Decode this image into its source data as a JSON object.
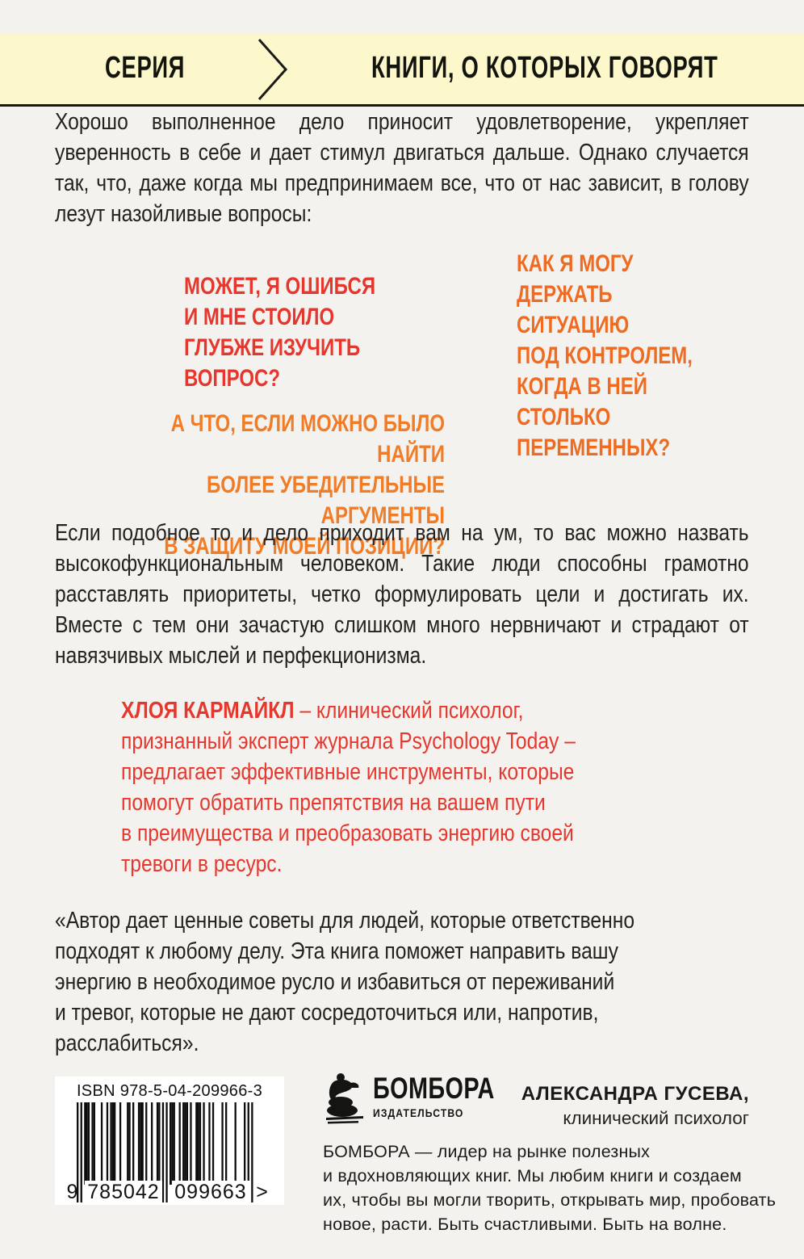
{
  "banner": {
    "series_label": "СЕРИЯ",
    "series_title": "КНИГИ, О КОТОРЫХ ГОВОРЯТ",
    "background": "#fcf8cb"
  },
  "intro_paragraph": "Хорошо выполненное дело приносит удовлетворение, укрепляет уверенность в себе и дает стимул двигаться дальше. Однако случается так, что, даже когда мы предпринимаем все, что от нас зависит, в голову лезут назойливые вопросы:",
  "questions": {
    "red_question": "МОЖЕТ, Я ОШИБСЯ\nИ МНЕ СТОИЛО\nГЛУБЖЕ ИЗУЧИТЬ\nВОПРОС?",
    "orange_question_right": "КАК Я МОГУ\nДЕРЖАТЬ\nСИТУАЦИЮ\nПОД КОНТРОЛЕМ,\nКОГДА В НЕЙ\nСТОЛЬКО\nПЕРЕМЕННЫХ?",
    "orange_question_left": "А ЧТО, ЕСЛИ МОЖНО БЫЛО НАЙТИ\nБОЛЕЕ УБЕДИТЕЛЬНЫЕ АРГУМЕНТЫ\nВ ЗАЩИТУ МОЕЙ ПОЗИЦИИ?",
    "red_color": "#e6372e",
    "orange_color": "#ef6b22"
  },
  "body_paragraph": "Если подобное то и дело приходит вам на ум, то вас можно назвать высокофункциональным человеком. Такие люди способны грамотно расставлять приоритеты, четко формулировать цели и достигать их. Вместе с тем они зачастую слишком много нервничают и страдают от навязчивых мыслей и перфекционизма.",
  "author_block": {
    "name": "ХЛОЯ КАРМАЙКЛ",
    "description": " – клинический психолог,\nпризнанный эксперт журнала Psychology Today –\nпредлагает эффективные инструменты, которые\nпомогут обратить препятствия на вашем пути\nв преимущества и преобразовать энергию своей\nтревоги в ресурс.",
    "color": "#e6372e"
  },
  "review": {
    "quote": "«Автор дает ценные советы для людей, которые ответственно\nподходят к любому делу. Эта книга поможет направить вашу\nэнергию в необходимое русло и избавиться от переживаний\nи тревог, которые не дают сосредоточиться или, напротив,\nрасслабиться».",
    "reviewer_name": "АЛЕКСАНДРА ГУСЕВА,",
    "reviewer_title": "клинический психолог"
  },
  "footer": {
    "isbn_label": "ISBN 978-5-04-209966-3",
    "barcode_digit_lead": "9",
    "barcode_digits_group1": "785042",
    "barcode_digits_group2": "099663",
    "barcode_suffix": ">",
    "publisher": {
      "logo_name": "БОМБОРА",
      "logo_subtitle": "ИЗДАТЕЛЬСТВО",
      "blurb": "БОМБОРА — лидер на рынке полезных\nи вдохновляющих книг. Мы любим книги и создаем\nих, чтобы вы могли творить, открывать мир, пробовать\nновое, расти. Быть счастливыми. Быть на волне."
    }
  }
}
